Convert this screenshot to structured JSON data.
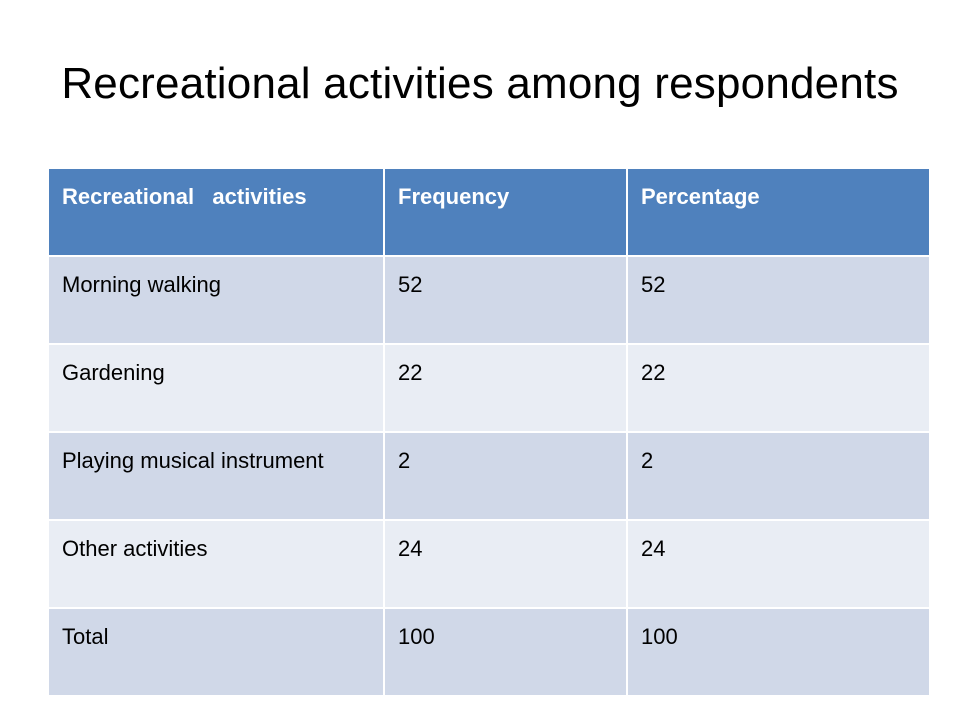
{
  "slide": {
    "title": "Recreational activities among respondents"
  },
  "colors": {
    "header_bg": "#4f81bd",
    "row_dark": "#d0d8e8",
    "row_light": "#e9edf4"
  },
  "table": {
    "headers": [
      "Recreational   activities",
      "Frequency",
      "Percentage"
    ],
    "rows": [
      [
        "Morning walking",
        "52",
        "52"
      ],
      [
        "Gardening",
        "22",
        "22"
      ],
      [
        "Playing musical instrument",
        "2",
        "2"
      ],
      [
        "Other activities",
        "24",
        "24"
      ],
      [
        "Total",
        "100",
        "100"
      ]
    ]
  }
}
